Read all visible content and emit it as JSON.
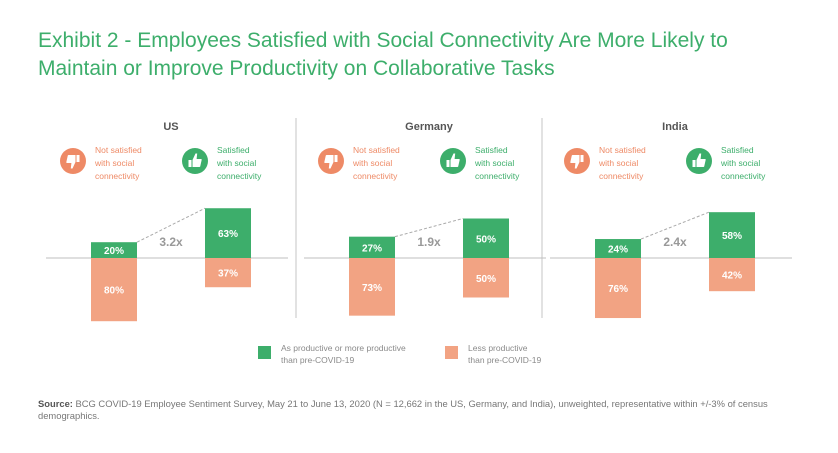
{
  "title_lines": [
    "Exhibit 2 - Employees Satisfied with Social Connectivity Are More Likely to",
    "Maintain or Improve Productivity on Collaborative Tasks"
  ],
  "colors": {
    "green": "#3dae6b",
    "orange": "#f2a383",
    "orange_text": "#ee8a66",
    "divider": "#cfcfcf",
    "axis": "#bfbfbf",
    "ratio_text": "#999999"
  },
  "group_labels": {
    "not_satisfied": [
      "Not satisfied",
      "with social",
      "connectivity"
    ],
    "satisfied": [
      "Satisfied",
      "with social",
      "connectivity"
    ]
  },
  "icons": {
    "not_satisfied": "thumbs-down-icon",
    "satisfied": "thumbs-up-icon"
  },
  "legend": {
    "productive": [
      "As productive or more productive",
      "than pre-COVID-19"
    ],
    "less_productive": [
      "Less productive",
      "than pre-COVID-19"
    ]
  },
  "source": {
    "label": "Source:",
    "text": "BCG COVID-19 Employee Sentiment Survey, May 21 to June 13, 2020 (N = 12,662 in the US, Germany, and India), unweighted, representative within +/-3% of census demographics."
  },
  "chart_data": {
    "type": "bar",
    "stacking": "diverging",
    "unit": "%",
    "categories": [
      "Not satisfied with social connectivity",
      "Satisfied with social connectivity"
    ],
    "series_names": [
      "As productive or more productive than pre-COVID-19",
      "Less productive than pre-COVID-19"
    ],
    "panels": [
      {
        "country": "US",
        "productive": [
          20,
          63
        ],
        "less_productive": [
          80,
          37
        ],
        "ratio": "3.2x"
      },
      {
        "country": "Germany",
        "productive": [
          27,
          50
        ],
        "less_productive": [
          73,
          50
        ],
        "ratio": "1.9x"
      },
      {
        "country": "India",
        "productive": [
          24,
          58
        ],
        "less_productive": [
          76,
          42
        ],
        "ratio": "2.4x"
      }
    ]
  }
}
